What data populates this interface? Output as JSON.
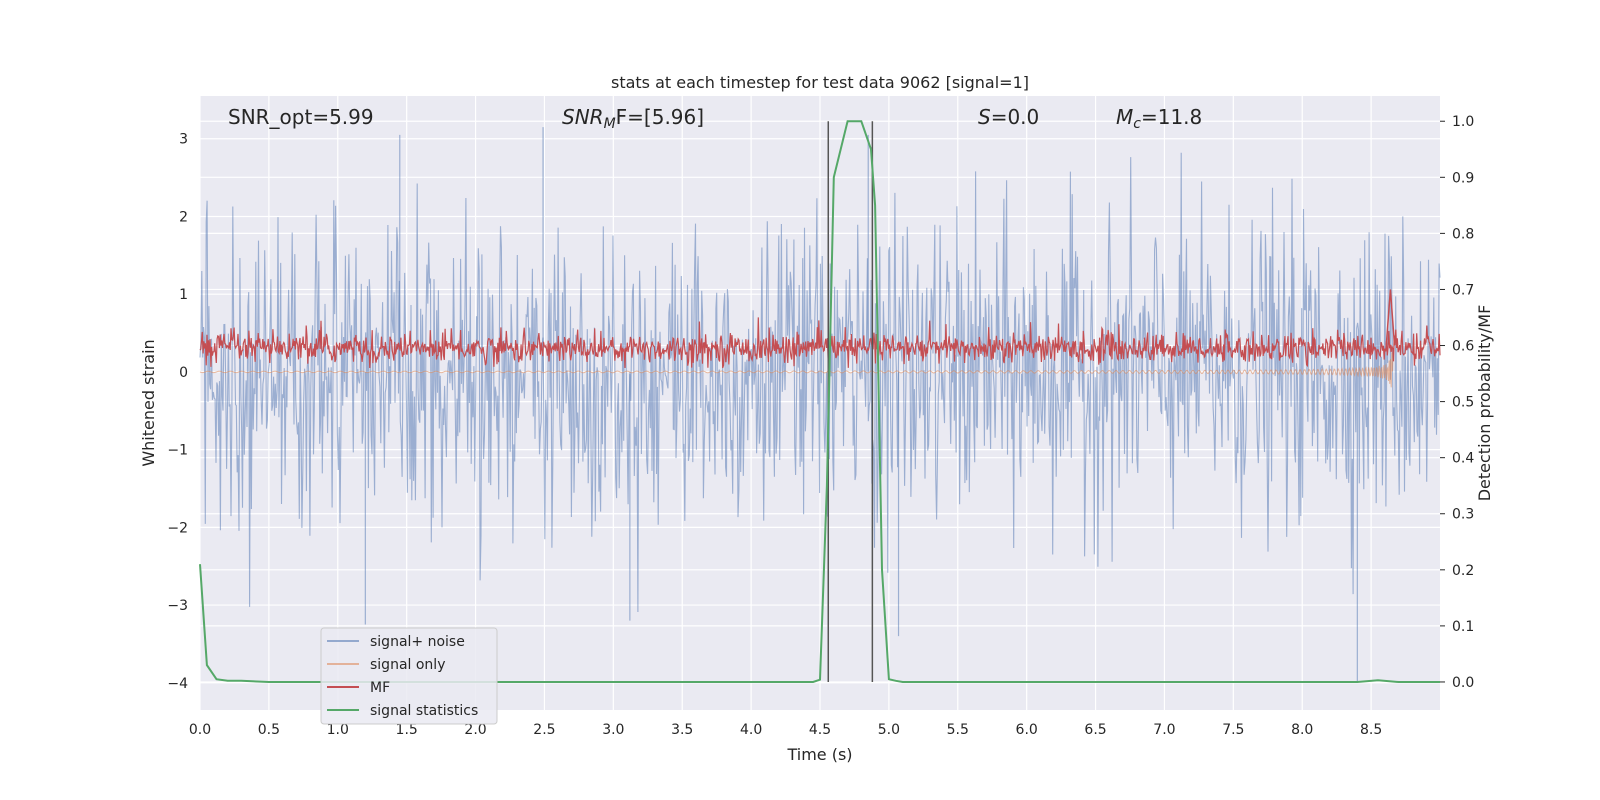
{
  "chart_data": {
    "type": "line",
    "title": "stats at each timestep for test data 9062 [signal=1]",
    "xlabel": "Time (s)",
    "ylabel_left": "Whitened strain",
    "ylabel_right": "Detection probability/MF",
    "xlim": [
      0.0,
      9.0
    ],
    "ylim_left": [
      -4.35,
      3.55
    ],
    "ylim_right": [
      -0.05,
      1.045
    ],
    "xticks": [
      "0.0",
      "0.5",
      "1.0",
      "1.5",
      "2.0",
      "2.5",
      "3.0",
      "3.5",
      "4.0",
      "4.5",
      "5.0",
      "5.5",
      "6.0",
      "6.5",
      "7.0",
      "7.5",
      "8.0",
      "8.5"
    ],
    "xtick_values": [
      0.0,
      0.5,
      1.0,
      1.5,
      2.0,
      2.5,
      3.0,
      3.5,
      4.0,
      4.5,
      5.0,
      5.5,
      6.0,
      6.5,
      7.0,
      7.5,
      8.0,
      8.5
    ],
    "yticks_left": [
      "3",
      "2",
      "1",
      "0",
      "−1",
      "−2",
      "−3",
      "−4"
    ],
    "ytick_values_left": [
      3,
      2,
      1,
      0,
      -1,
      -2,
      -3,
      -4
    ],
    "yticks_right": [
      "1.0",
      "0.9",
      "0.8",
      "0.7",
      "0.6",
      "0.5",
      "0.4",
      "0.3",
      "0.2",
      "0.1",
      "0.0"
    ],
    "ytick_values_right": [
      1.0,
      0.9,
      0.8,
      0.7,
      0.6,
      0.5,
      0.4,
      0.3,
      0.2,
      0.1,
      0.0
    ],
    "grid": true,
    "legend_position": "lower-left",
    "annotations": {
      "snr_opt": "SNR_opt=5.99",
      "snr_mf_symbol": "SNR",
      "snr_mf_sub": "M",
      "snr_mf_rest": "F=[5.96]",
      "s_symbol": "S",
      "s_rest": "=0.0",
      "mc_symbol": "M",
      "mc_sub": "c",
      "mc_rest": "=11.8"
    },
    "vlines_x": [
      4.56,
      4.88
    ],
    "series": [
      {
        "name": "signal+ noise",
        "color": "#4c72b0",
        "axis": "left",
        "kind": "noise-envelope",
        "x_range": [
          0.0,
          9.0
        ],
        "typical_amplitude": 1.6,
        "peak_values": [
          3.1,
          -3.25,
          3.2,
          -3.4,
          -4.0
        ]
      },
      {
        "name": "signal only",
        "color": "#dd8452",
        "axis": "left",
        "kind": "chirp",
        "start_amplitude": 0.02,
        "peak_time": 8.66,
        "peak_max": 0.55,
        "peak_min": -0.88,
        "end_time": 8.66
      },
      {
        "name": "MF",
        "color": "#c44e52",
        "axis": "right",
        "kind": "noise-band",
        "band": [
          0.56,
          0.63
        ],
        "spike_x": 8.64,
        "spike_y": 0.7
      },
      {
        "name": "signal statistics",
        "color": "#55a868",
        "axis": "right",
        "x": [
          0.0,
          0.05,
          0.12,
          0.2,
          0.3,
          0.5,
          1.0,
          2.0,
          3.0,
          4.0,
          4.45,
          4.5,
          4.55,
          4.6,
          4.7,
          4.8,
          4.87,
          4.9,
          4.95,
          5.0,
          5.05,
          5.1,
          6.0,
          7.0,
          8.0,
          8.4,
          8.55,
          8.7,
          9.0
        ],
        "y": [
          0.21,
          0.03,
          0.005,
          0.002,
          0.002,
          0.0,
          0.0,
          0.0,
          0.0,
          0.0,
          0.0,
          0.004,
          0.35,
          0.9,
          1.0,
          1.0,
          0.95,
          0.85,
          0.2,
          0.005,
          0.002,
          0.0,
          0.0,
          0.0,
          0.0,
          0.0,
          0.003,
          0.0,
          0.0
        ]
      }
    ]
  }
}
